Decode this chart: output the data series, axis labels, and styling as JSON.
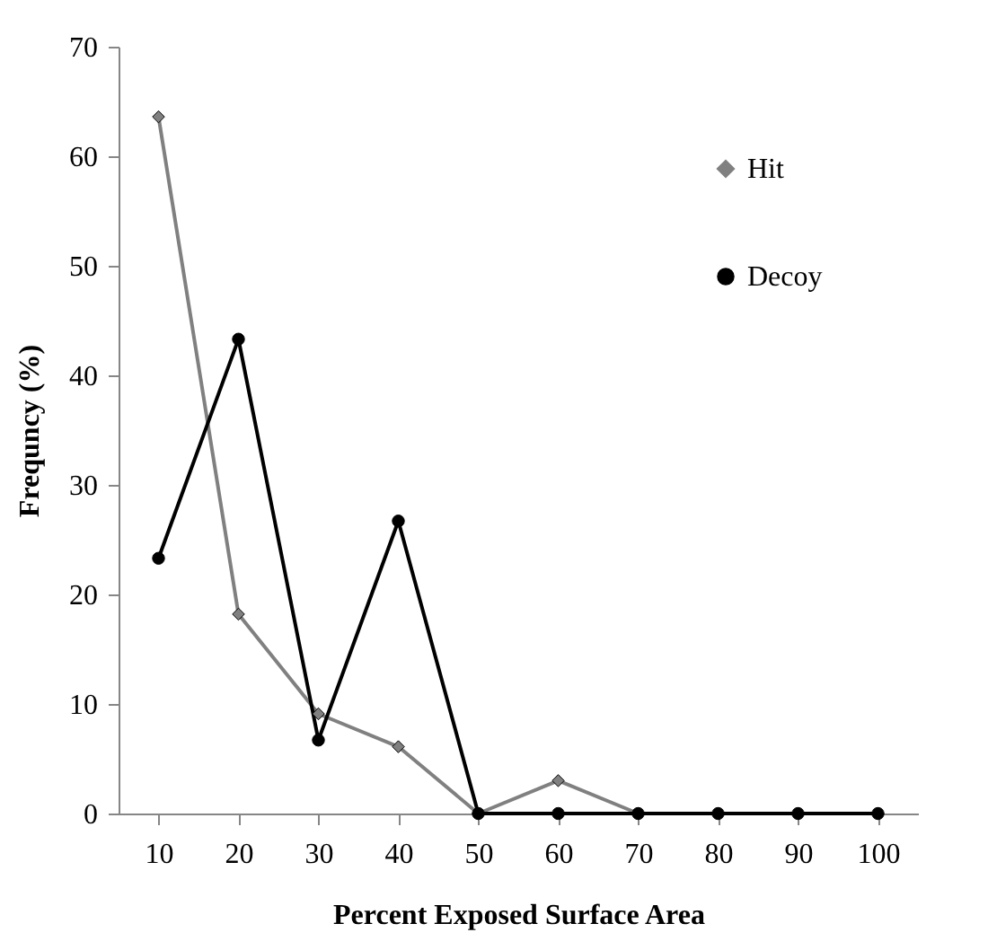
{
  "chart_data": {
    "type": "line",
    "xlabel": "Percent Exposed Surface Area",
    "ylabel": "Frequncy (%)",
    "categories": [
      "10",
      "20",
      "30",
      "40",
      "50",
      "60",
      "70",
      "80",
      "90",
      "100"
    ],
    "series": [
      {
        "name": "Hit",
        "color": "#808080",
        "marker": "diamond",
        "values": [
          63.6,
          18.2,
          9.1,
          6.1,
          0,
          3.0,
          0,
          0,
          0,
          0
        ]
      },
      {
        "name": "Decoy",
        "color": "#000000",
        "marker": "circle",
        "values": [
          23.3,
          43.3,
          6.7,
          26.7,
          0,
          0,
          0,
          0,
          0,
          0
        ]
      }
    ],
    "ylim": [
      0,
      70
    ],
    "yticks": [
      0,
      10,
      20,
      30,
      40,
      50,
      60,
      70
    ],
    "grid": false,
    "legend": "top right",
    "line_style": "solid"
  }
}
